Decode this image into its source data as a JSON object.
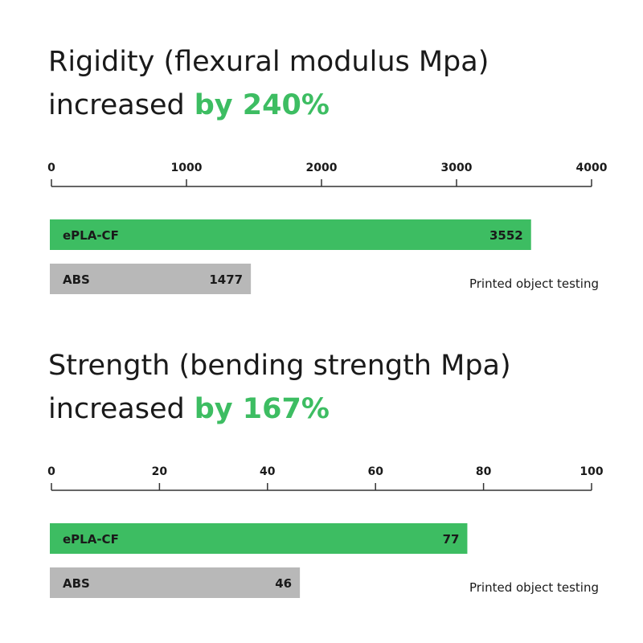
{
  "chart_data": [
    {
      "type": "barh",
      "title": "Rigidity (flexural modulus Mpa)",
      "subtitle": "increased",
      "highlight": "by 240%",
      "categories": [
        "ePLA-CF",
        "ABS"
      ],
      "values": [
        3552,
        1477
      ],
      "colors": [
        "#3dbd62",
        "#b8b8b8"
      ],
      "xlim": [
        0,
        4000
      ],
      "xticks": [
        0,
        1000,
        2000,
        3000,
        4000
      ],
      "note": "Printed object testing"
    },
    {
      "type": "barh",
      "title": "Strength (bending strength Mpa)",
      "subtitle": "increased",
      "highlight": "by 167%",
      "categories": [
        "ePLA-CF",
        "ABS"
      ],
      "values": [
        77,
        46
      ],
      "colors": [
        "#3dbd62",
        "#b8b8b8"
      ],
      "xlim": [
        0,
        100
      ],
      "xticks": [
        0,
        20,
        40,
        60,
        80,
        100
      ],
      "note": "Printed object testing"
    }
  ]
}
